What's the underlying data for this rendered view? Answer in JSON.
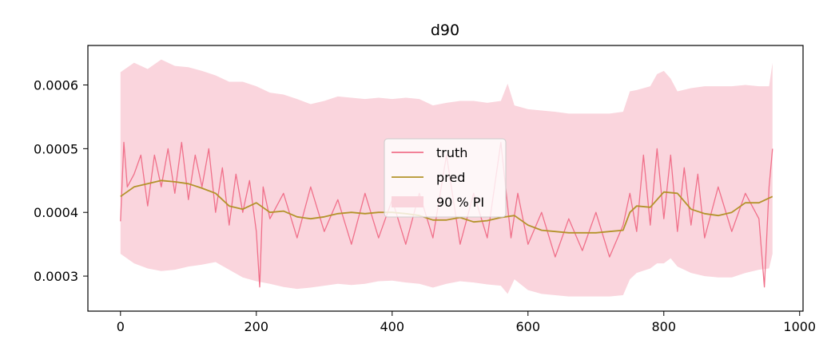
{
  "chart_data": {
    "type": "line",
    "title": "d90",
    "xlabel": "",
    "ylabel": "",
    "xlim": [
      -48,
      1005
    ],
    "ylim": [
      0.000245,
      0.000662
    ],
    "xticks": [
      0,
      200,
      400,
      600,
      800,
      1000
    ],
    "xtick_labels": [
      "0",
      "200",
      "400",
      "600",
      "800",
      "1000"
    ],
    "yticks": [
      0.0003,
      0.0004,
      0.0005,
      0.0006
    ],
    "ytick_labels": [
      "0.0003",
      "0.0004",
      "0.0005",
      "0.0006"
    ],
    "grid": false,
    "legend_position": "center",
    "colors": {
      "truth": "#f0708a",
      "pred": "#b3932a",
      "band": "#fad5dd"
    },
    "series": [
      {
        "name": "truth",
        "kind": "line",
        "x": [
          0,
          5,
          10,
          20,
          30,
          40,
          50,
          60,
          70,
          80,
          90,
          100,
          110,
          120,
          130,
          140,
          150,
          160,
          170,
          180,
          190,
          200,
          205,
          210,
          220,
          240,
          260,
          280,
          300,
          320,
          340,
          360,
          380,
          400,
          420,
          440,
          460,
          480,
          500,
          520,
          540,
          560,
          575,
          585,
          600,
          620,
          640,
          660,
          680,
          700,
          720,
          740,
          750,
          760,
          770,
          780,
          790,
          800,
          810,
          820,
          830,
          840,
          850,
          860,
          880,
          900,
          920,
          940,
          948,
          955,
          960
        ],
        "y": [
          0.000386,
          0.00051,
          0.00044,
          0.00046,
          0.00049,
          0.00041,
          0.00049,
          0.00044,
          0.0005,
          0.00043,
          0.00051,
          0.00042,
          0.00049,
          0.00044,
          0.0005,
          0.0004,
          0.00047,
          0.00038,
          0.00046,
          0.0004,
          0.00045,
          0.00037,
          0.000283,
          0.00044,
          0.00039,
          0.00043,
          0.00036,
          0.00044,
          0.00037,
          0.00042,
          0.00035,
          0.00043,
          0.00036,
          0.00042,
          0.00035,
          0.00043,
          0.00036,
          0.00049,
          0.00035,
          0.00043,
          0.00036,
          0.00051,
          0.00036,
          0.00043,
          0.00035,
          0.0004,
          0.00033,
          0.00039,
          0.00034,
          0.0004,
          0.00033,
          0.00038,
          0.00043,
          0.00037,
          0.00049,
          0.00038,
          0.0005,
          0.00039,
          0.00049,
          0.00037,
          0.00047,
          0.00038,
          0.00046,
          0.00036,
          0.00044,
          0.00037,
          0.00043,
          0.00039,
          0.000283,
          0.00044,
          0.0005
        ]
      },
      {
        "name": "pred",
        "kind": "line",
        "x": [
          0,
          20,
          40,
          60,
          80,
          100,
          120,
          140,
          160,
          180,
          200,
          220,
          240,
          260,
          280,
          300,
          320,
          340,
          360,
          380,
          400,
          420,
          440,
          460,
          480,
          500,
          520,
          540,
          560,
          580,
          600,
          620,
          640,
          660,
          680,
          700,
          720,
          740,
          750,
          760,
          780,
          800,
          820,
          840,
          860,
          880,
          900,
          920,
          940,
          960
        ],
        "y": [
          0.000425,
          0.00044,
          0.000445,
          0.00045,
          0.000448,
          0.000445,
          0.000438,
          0.00043,
          0.00041,
          0.000405,
          0.000415,
          0.0004,
          0.000402,
          0.000393,
          0.00039,
          0.000393,
          0.000398,
          0.0004,
          0.000398,
          0.0004,
          0.0004,
          0.000398,
          0.000395,
          0.000388,
          0.000388,
          0.000392,
          0.000385,
          0.000387,
          0.000392,
          0.000395,
          0.00038,
          0.000372,
          0.00037,
          0.000368,
          0.000368,
          0.000368,
          0.00037,
          0.000372,
          0.0004,
          0.00041,
          0.000408,
          0.000432,
          0.00043,
          0.000405,
          0.000398,
          0.000395,
          0.0004,
          0.000415,
          0.000415,
          0.000425
        ]
      },
      {
        "name": "90 % PI",
        "kind": "band",
        "x": [
          0,
          20,
          40,
          60,
          80,
          100,
          120,
          140,
          160,
          180,
          200,
          220,
          240,
          260,
          280,
          300,
          320,
          340,
          360,
          380,
          400,
          420,
          440,
          460,
          480,
          500,
          520,
          540,
          560,
          570,
          580,
          600,
          620,
          640,
          660,
          680,
          700,
          720,
          740,
          750,
          760,
          780,
          790,
          800,
          810,
          820,
          840,
          860,
          880,
          900,
          920,
          940,
          955,
          960
        ],
        "lower": [
          0.000335,
          0.00032,
          0.000312,
          0.000308,
          0.00031,
          0.000315,
          0.000318,
          0.000322,
          0.00031,
          0.000298,
          0.000292,
          0.000288,
          0.000283,
          0.00028,
          0.000282,
          0.000285,
          0.000288,
          0.000286,
          0.000288,
          0.000292,
          0.000293,
          0.00029,
          0.000288,
          0.000282,
          0.000288,
          0.000292,
          0.00029,
          0.000287,
          0.000285,
          0.000272,
          0.000295,
          0.000278,
          0.000272,
          0.00027,
          0.000268,
          0.000268,
          0.000268,
          0.000268,
          0.00027,
          0.000295,
          0.000305,
          0.000312,
          0.00032,
          0.00032,
          0.000328,
          0.000315,
          0.000305,
          0.0003,
          0.000298,
          0.000298,
          0.000305,
          0.00031,
          0.000312,
          0.000335
        ],
        "upper": [
          0.00062,
          0.000635,
          0.000625,
          0.00064,
          0.00063,
          0.000628,
          0.000622,
          0.000615,
          0.000605,
          0.000605,
          0.000598,
          0.000588,
          0.000585,
          0.000578,
          0.00057,
          0.000575,
          0.000582,
          0.00058,
          0.000578,
          0.00058,
          0.000578,
          0.00058,
          0.000578,
          0.000568,
          0.000572,
          0.000575,
          0.000575,
          0.000572,
          0.000575,
          0.000602,
          0.000568,
          0.000562,
          0.00056,
          0.000558,
          0.000555,
          0.000555,
          0.000555,
          0.000555,
          0.000558,
          0.00059,
          0.000592,
          0.000598,
          0.000617,
          0.000622,
          0.00061,
          0.00059,
          0.000595,
          0.000598,
          0.000598,
          0.000598,
          0.0006,
          0.000598,
          0.000598,
          0.000635
        ]
      }
    ],
    "legend": [
      "truth",
      "pred",
      "90 % PI"
    ]
  }
}
